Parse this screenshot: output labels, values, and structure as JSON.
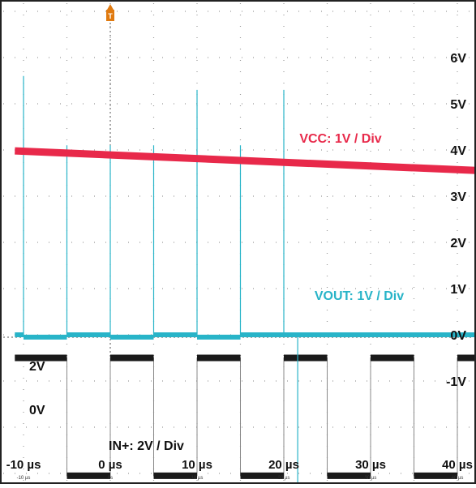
{
  "chart_data": {
    "type": "line",
    "xlabel": "",
    "ylabel": "",
    "xlim": [
      -11,
      43
    ],
    "ylim": [
      -3.5,
      7.2
    ],
    "grid": true,
    "x_ticks": [
      {
        "x": -10,
        "big": "-10 µs",
        "small": "-10 µs"
      },
      {
        "x": 0,
        "big": "0 µs",
        "small": "0s"
      },
      {
        "x": 10,
        "big": "10 µs",
        "small": "10 µs"
      },
      {
        "x": 20,
        "big": "20 µs",
        "small": "20 µs"
      },
      {
        "x": 30,
        "big": "30 µs",
        "small": "30 µs"
      },
      {
        "x": 40,
        "big": "40 µs",
        "small": "40 µs"
      }
    ],
    "y_ticks": [
      {
        "y": 6,
        "label": "6V"
      },
      {
        "y": 5,
        "label": "5V"
      },
      {
        "y": 4,
        "label": "4V"
      },
      {
        "y": 3,
        "label": "3V"
      },
      {
        "y": 2,
        "label": "2V"
      },
      {
        "y": 1,
        "label": "1V"
      },
      {
        "y": 0,
        "label": "0V"
      },
      {
        "y": -1,
        "label": "-1V"
      }
    ],
    "trigger_label": "T",
    "series": [
      {
        "name": "VCC: 1V / Div",
        "color": "#e8294a",
        "x": [
          -11,
          43
        ],
        "y": [
          3.98,
          3.55
        ]
      },
      {
        "name": "VOUT: 1V / Div",
        "color": "#28b4c8",
        "x": [
          -11,
          -10.1,
          -10,
          -9.9,
          -5.1,
          -5,
          -4.9,
          4.9,
          5,
          5.1,
          14.9,
          15,
          15.1,
          19.9,
          20,
          20.1,
          21.5,
          21.6,
          21.7,
          43
        ],
        "y": [
          0,
          0,
          5.6,
          0,
          0,
          -0.3,
          0,
          0,
          0,
          0,
          0,
          0,
          0,
          0,
          5.3,
          0,
          0,
          -3.6,
          0,
          0
        ],
        "spikes": [
          {
            "x": -10,
            "y": 5.6
          },
          {
            "x": -5,
            "y": 4.1
          },
          {
            "x": 0,
            "y": 4.1
          },
          {
            "x": 5,
            "y": 4.1
          },
          {
            "x": 10,
            "y": 5.3
          },
          {
            "x": 15,
            "y": 4.1
          },
          {
            "x": 20,
            "y": 5.3
          },
          {
            "x": 21.6,
            "y": -3.6
          }
        ],
        "steps": [
          {
            "x0": -11,
            "x1": -10,
            "level": 0
          },
          {
            "x0": -10,
            "x1": -5,
            "level": -0.05
          },
          {
            "x0": -5,
            "x1": 0,
            "level": 0
          },
          {
            "x0": 0,
            "x1": 5,
            "level": -0.05
          },
          {
            "x0": 5,
            "x1": 10,
            "level": 0
          },
          {
            "x0": 10,
            "x1": 15,
            "level": -0.05
          },
          {
            "x0": 15,
            "x1": 20,
            "level": 0
          },
          {
            "x0": 20,
            "x1": 43,
            "level": 0
          }
        ]
      },
      {
        "name": "IN+: 2V / Div",
        "color": "#1a1a1a",
        "levels": {
          "high": -0.5,
          "low": -3.05
        },
        "level_labels": {
          "high": "2V",
          "low": "0V"
        },
        "x": [
          -11,
          -5,
          -5,
          0,
          0,
          5,
          5,
          10,
          10,
          15,
          15,
          20,
          20,
          25,
          25,
          30,
          30,
          35,
          35,
          40,
          40,
          43
        ],
        "y": [
          -0.5,
          -0.5,
          -3.05,
          -3.05,
          -0.5,
          -0.5,
          -3.05,
          -3.05,
          -0.5,
          -0.5,
          -3.05,
          -3.05,
          -0.5,
          -0.5,
          -3.05,
          -3.05,
          -0.5,
          -0.5,
          -3.05,
          -3.05,
          -0.5,
          -0.5
        ]
      }
    ]
  }
}
